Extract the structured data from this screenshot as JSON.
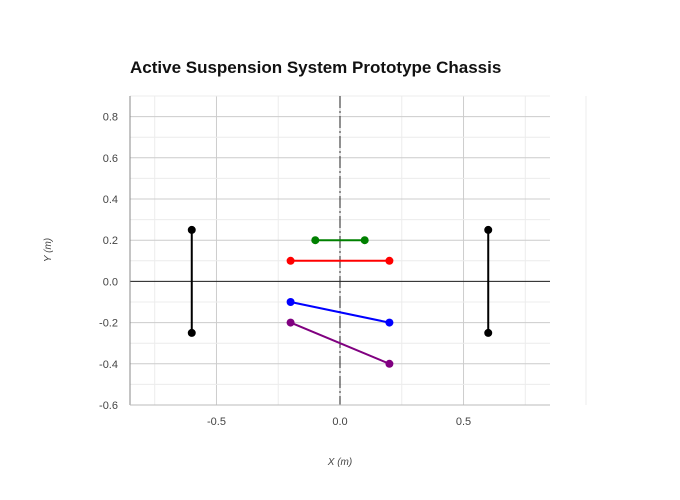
{
  "chart_data": {
    "type": "line",
    "title": "Active Suspension System Prototype Chassis",
    "xlabel": "X (m)",
    "ylabel": "Y (m)",
    "xlim": [
      -0.85,
      0.85
    ],
    "ylim": [
      -0.6,
      0.9
    ],
    "x_ticks": [
      -0.5,
      0.0,
      0.5
    ],
    "x_tick_labels": [
      "-0.5",
      "0.0",
      "0.5"
    ],
    "y_ticks": [
      -0.6,
      -0.4,
      -0.2,
      0.0,
      0.2,
      0.4,
      0.6,
      0.8
    ],
    "y_tick_labels": [
      "-0.6",
      "-0.4",
      "-0.2",
      "0.0",
      "0.2",
      "0.4",
      "0.6",
      "0.8"
    ],
    "grid": true,
    "series": [
      {
        "color": "#000000",
        "x": [
          -0.6,
          -0.6
        ],
        "y": [
          0.25,
          -0.25
        ]
      },
      {
        "color": "#000000",
        "x": [
          0.6,
          0.6
        ],
        "y": [
          0.25,
          -0.25
        ]
      },
      {
        "color": "#008000",
        "x": [
          -0.1,
          0.1
        ],
        "y": [
          0.2,
          0.2
        ]
      },
      {
        "color": "#ff0000",
        "x": [
          -0.2,
          0.2
        ],
        "y": [
          0.1,
          0.1
        ]
      },
      {
        "color": "#0000ff",
        "x": [
          -0.2,
          0.2
        ],
        "y": [
          -0.1,
          -0.2
        ]
      },
      {
        "color": "#800080",
        "x": [
          -0.2,
          0.2
        ],
        "y": [
          -0.2,
          -0.4
        ]
      }
    ]
  }
}
